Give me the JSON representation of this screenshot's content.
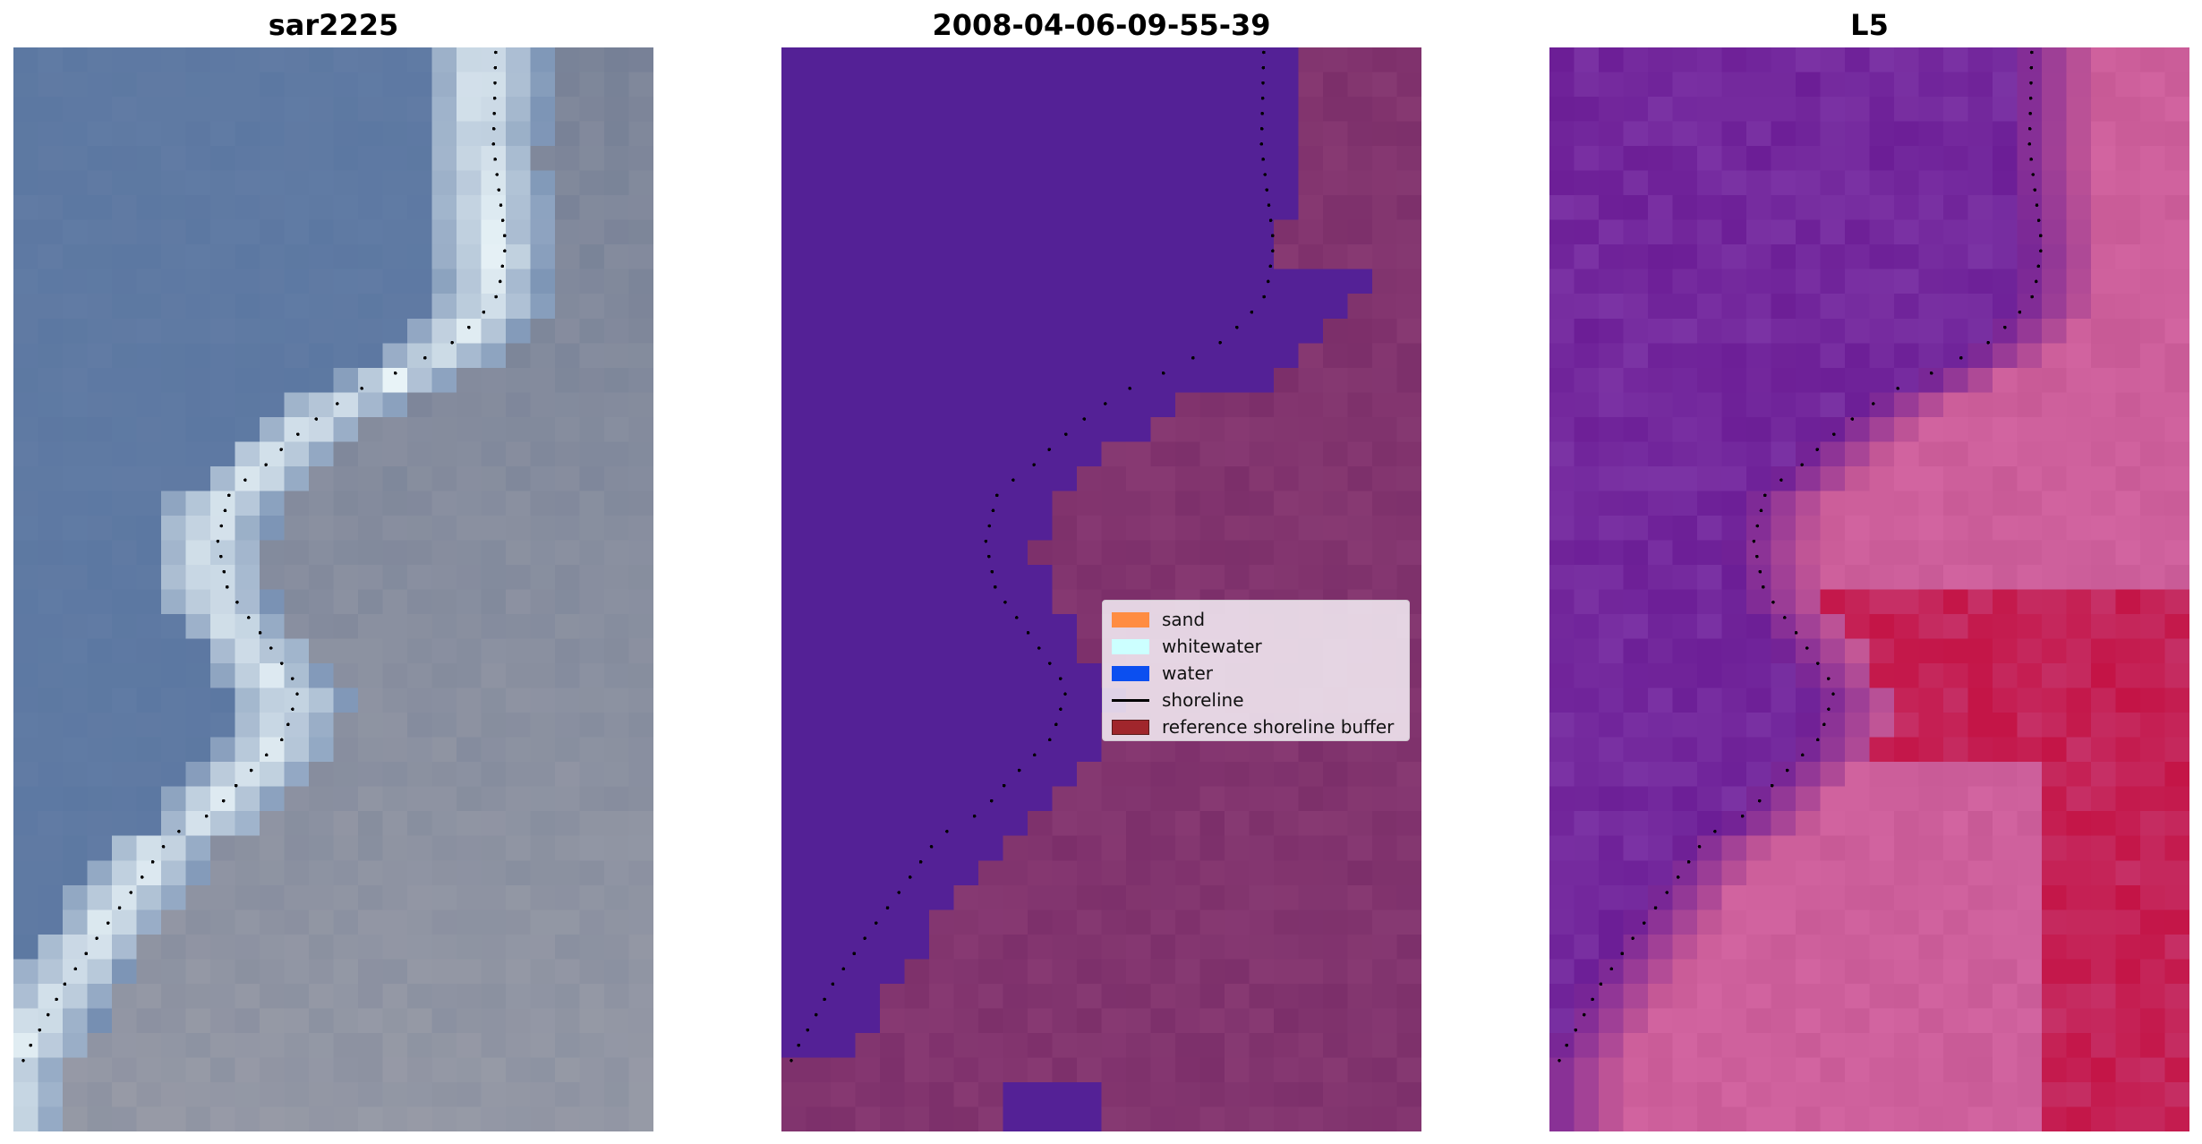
{
  "panels": [
    {
      "title": "sar2225",
      "kind": "rgb"
    },
    {
      "title": "2008-04-06-09-55-39",
      "kind": "classification"
    },
    {
      "title": "L5",
      "kind": "index"
    }
  ],
  "legend": {
    "items": [
      {
        "label": "sand",
        "color": "#ff8c42",
        "kind": "patch"
      },
      {
        "label": "whitewater",
        "color": "#ccffff",
        "kind": "patch"
      },
      {
        "label": "water",
        "color": "#0b4ff0",
        "kind": "patch"
      },
      {
        "label": "shoreline",
        "color": "#000000",
        "kind": "line"
      },
      {
        "label": "reference shoreline buffer",
        "color": "#a0262c",
        "kind": "patch"
      }
    ]
  },
  "colors": {
    "water_class": "#542196",
    "land_class": "#7c2f6a",
    "shoreline_dots": "#000000"
  }
}
